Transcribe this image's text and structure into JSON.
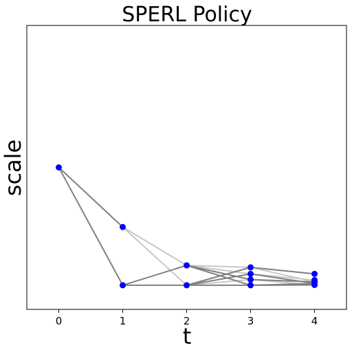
{
  "chart_data": {
    "type": "line",
    "title": "SPERL Policy",
    "xlabel": "t",
    "ylabel": "scale",
    "x_ticks": [
      "0",
      "1",
      "2",
      "3",
      "4"
    ],
    "xlim": [
      -0.5,
      4.5
    ],
    "ylim": [
      0,
      1
    ],
    "y_ticks": [],
    "grid": false,
    "legend": "none",
    "colors": {
      "point": "#0000ff",
      "edge_dark": "#808080",
      "edge_light": "#c8c8c8"
    },
    "nodes": [
      {
        "id": "n0",
        "x": 0,
        "y": 0.5
      },
      {
        "id": "n1a",
        "x": 1,
        "y": 0.29
      },
      {
        "id": "n1b",
        "x": 1,
        "y": 0.085
      },
      {
        "id": "n2a",
        "x": 2,
        "y": 0.155
      },
      {
        "id": "n2b",
        "x": 2,
        "y": 0.085
      },
      {
        "id": "n3a",
        "x": 3,
        "y": 0.148
      },
      {
        "id": "n3b",
        "x": 3,
        "y": 0.125
      },
      {
        "id": "n3c",
        "x": 3,
        "y": 0.105
      },
      {
        "id": "n3d",
        "x": 3,
        "y": 0.085
      },
      {
        "id": "n4a",
        "x": 4,
        "y": 0.125
      },
      {
        "id": "n4b",
        "x": 4,
        "y": 0.103
      },
      {
        "id": "n4c",
        "x": 4,
        "y": 0.097
      },
      {
        "id": "n4d",
        "x": 4,
        "y": 0.091
      },
      {
        "id": "n4e",
        "x": 4,
        "y": 0.086
      }
    ],
    "edges": [
      {
        "from": "n0",
        "to": "n1a",
        "shade": "dark"
      },
      {
        "from": "n0",
        "to": "n1b",
        "shade": "dark"
      },
      {
        "from": "n1a",
        "to": "n2a",
        "shade": "light"
      },
      {
        "from": "n1a",
        "to": "n2b",
        "shade": "light"
      },
      {
        "from": "n1b",
        "to": "n2a",
        "shade": "dark"
      },
      {
        "from": "n1b",
        "to": "n2b",
        "shade": "dark"
      },
      {
        "from": "n2a",
        "to": "n3a",
        "shade": "light"
      },
      {
        "from": "n2a",
        "to": "n3b",
        "shade": "light"
      },
      {
        "from": "n2a",
        "to": "n3c",
        "shade": "dark"
      },
      {
        "from": "n2a",
        "to": "n3d",
        "shade": "dark"
      },
      {
        "from": "n2b",
        "to": "n3a",
        "shade": "dark"
      },
      {
        "from": "n2b",
        "to": "n3b",
        "shade": "dark"
      },
      {
        "from": "n2b",
        "to": "n3c",
        "shade": "light"
      },
      {
        "from": "n2b",
        "to": "n3d",
        "shade": "dark"
      },
      {
        "from": "n3a",
        "to": "n4a",
        "shade": "dark"
      },
      {
        "from": "n3a",
        "to": "n4c",
        "shade": "light"
      },
      {
        "from": "n3b",
        "to": "n4b",
        "shade": "light"
      },
      {
        "from": "n3b",
        "to": "n4d",
        "shade": "dark"
      },
      {
        "from": "n3c",
        "to": "n4c",
        "shade": "dark"
      },
      {
        "from": "n3c",
        "to": "n4e",
        "shade": "light"
      },
      {
        "from": "n3d",
        "to": "n4d",
        "shade": "dark"
      },
      {
        "from": "n3d",
        "to": "n4e",
        "shade": "dark"
      }
    ]
  }
}
